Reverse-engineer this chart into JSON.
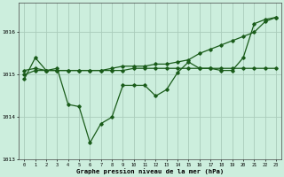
{
  "hours": [
    0,
    1,
    2,
    3,
    4,
    5,
    6,
    7,
    8,
    9,
    10,
    11,
    12,
    13,
    14,
    15,
    16,
    17,
    18,
    19,
    20,
    21,
    22,
    23
  ],
  "series_jagged": [
    1014.9,
    1015.4,
    1015.1,
    1015.15,
    1014.3,
    1014.25,
    1013.4,
    1013.85,
    1014.0,
    1014.75,
    1014.75,
    1014.75,
    1014.5,
    1014.65,
    1015.05,
    1015.3,
    1015.15,
    1015.15,
    1015.1,
    1015.1,
    1015.4,
    1016.2,
    1016.3,
    1016.35
  ],
  "series_flat": [
    1015.1,
    1015.15,
    1015.1,
    1015.1,
    1015.1,
    1015.1,
    1015.1,
    1015.1,
    1015.1,
    1015.1,
    1015.15,
    1015.15,
    1015.15,
    1015.15,
    1015.15,
    1015.15,
    1015.15,
    1015.15,
    1015.15,
    1015.15,
    1015.15,
    1015.15,
    1015.15,
    1015.15
  ],
  "series_rising": [
    1015.0,
    1015.1,
    1015.1,
    1015.1,
    1015.1,
    1015.1,
    1015.1,
    1015.1,
    1015.15,
    1015.2,
    1015.2,
    1015.2,
    1015.25,
    1015.25,
    1015.3,
    1015.35,
    1015.5,
    1015.6,
    1015.7,
    1015.8,
    1015.9,
    1016.0,
    1016.25,
    1016.35
  ],
  "line_color": "#1a5c1a",
  "bg_color": "#cceedd",
  "grid_color": "#aaccbb",
  "xlabel": "Graphe pression niveau de la mer (hPa)",
  "ylim": [
    1013.0,
    1016.7
  ],
  "yticks": [
    1013,
    1014,
    1015,
    1016
  ],
  "xticks": [
    0,
    1,
    2,
    3,
    4,
    5,
    6,
    7,
    8,
    9,
    10,
    11,
    12,
    13,
    14,
    15,
    16,
    17,
    18,
    19,
    20,
    21,
    22,
    23
  ]
}
